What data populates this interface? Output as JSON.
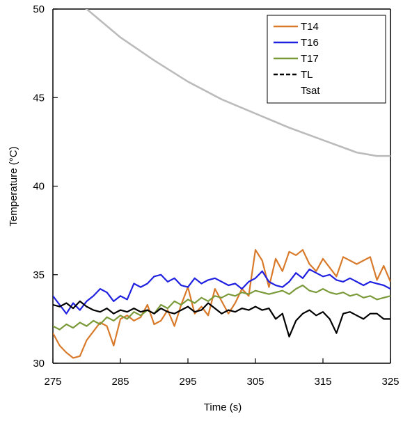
{
  "chart_data": {
    "type": "line",
    "title": "",
    "xlabel": "Time (s)",
    "ylabel": "Temperature (°C)",
    "xlim": [
      275,
      325
    ],
    "ylim": [
      30,
      50
    ],
    "x_ticks": [
      "275",
      "285",
      "295",
      "305",
      "315",
      "325"
    ],
    "y_ticks": [
      "30",
      "35",
      "40",
      "45",
      "50"
    ],
    "grid": false,
    "legend_position": "top-right",
    "series": [
      {
        "name": "T14",
        "color": "#d97a2b",
        "dash": "solid",
        "x": [
          275,
          276,
          277,
          278,
          279,
          280,
          281,
          282,
          283,
          284,
          285,
          286,
          287,
          288,
          289,
          290,
          291,
          292,
          293,
          294,
          295,
          296,
          297,
          298,
          299,
          300,
          301,
          302,
          303,
          304,
          305,
          306,
          307,
          308,
          309,
          310,
          311,
          312,
          313,
          314,
          315,
          316,
          317,
          318,
          319,
          320,
          321,
          322,
          323,
          324,
          325
        ],
        "y": [
          31.7,
          31.0,
          30.6,
          30.3,
          30.4,
          31.3,
          31.8,
          32.3,
          32.1,
          31.0,
          32.5,
          32.7,
          32.4,
          32.6,
          33.3,
          32.2,
          32.4,
          33.0,
          32.1,
          33.3,
          34.3,
          32.8,
          33.2,
          32.7,
          34.2,
          33.5,
          32.8,
          33.4,
          34.2,
          33.8,
          36.4,
          35.8,
          34.3,
          35.9,
          35.2,
          36.3,
          36.1,
          36.4,
          35.6,
          35.2,
          35.9,
          35.4,
          34.9,
          36.0,
          35.8,
          35.6,
          35.8,
          36.0,
          34.7,
          35.5,
          34.6
        ]
      },
      {
        "name": "T16",
        "color": "#2020e0",
        "dash": "solid",
        "x": [
          275,
          276,
          277,
          278,
          279,
          280,
          281,
          282,
          283,
          284,
          285,
          286,
          287,
          288,
          289,
          290,
          291,
          292,
          293,
          294,
          295,
          296,
          297,
          298,
          299,
          300,
          301,
          302,
          303,
          304,
          305,
          306,
          307,
          308,
          309,
          310,
          311,
          312,
          313,
          314,
          315,
          316,
          317,
          318,
          319,
          320,
          321,
          322,
          323,
          324,
          325
        ],
        "y": [
          33.8,
          33.3,
          32.8,
          33.4,
          33.0,
          33.5,
          33.8,
          34.2,
          34.0,
          33.5,
          33.8,
          33.6,
          34.5,
          34.3,
          34.5,
          34.9,
          35.0,
          34.6,
          34.8,
          34.4,
          34.3,
          34.8,
          34.5,
          34.7,
          34.8,
          34.6,
          34.4,
          34.5,
          34.2,
          34.6,
          34.8,
          35.2,
          34.6,
          34.4,
          34.3,
          34.6,
          35.1,
          34.8,
          35.3,
          35.1,
          34.9,
          35.0,
          34.7,
          34.6,
          34.8,
          34.6,
          34.4,
          34.6,
          34.5,
          34.4,
          34.2
        ]
      },
      {
        "name": "T17",
        "color": "#7a9a3a",
        "dash": "solid",
        "x": [
          275,
          276,
          277,
          278,
          279,
          280,
          281,
          282,
          283,
          284,
          285,
          286,
          287,
          288,
          289,
          290,
          291,
          292,
          293,
          294,
          295,
          296,
          297,
          298,
          299,
          300,
          301,
          302,
          303,
          304,
          305,
          306,
          307,
          308,
          309,
          310,
          311,
          312,
          313,
          314,
          315,
          316,
          317,
          318,
          319,
          320,
          321,
          322,
          323,
          324,
          325
        ],
        "y": [
          32.1,
          31.9,
          32.2,
          32.0,
          32.3,
          32.1,
          32.4,
          32.2,
          32.6,
          32.4,
          32.7,
          32.5,
          32.9,
          32.7,
          33.0,
          32.8,
          33.3,
          33.1,
          33.5,
          33.3,
          33.6,
          33.4,
          33.7,
          33.5,
          33.8,
          33.7,
          33.9,
          33.8,
          34.0,
          33.9,
          34.1,
          34.0,
          33.9,
          34.0,
          34.1,
          33.9,
          34.2,
          34.4,
          34.1,
          34.0,
          34.2,
          34.0,
          33.9,
          34.0,
          33.8,
          33.9,
          33.7,
          33.8,
          33.6,
          33.7,
          33.8
        ]
      },
      {
        "name": "TL",
        "color": "#000000",
        "dash": "solid",
        "x": [
          275,
          276,
          277,
          278,
          279,
          280,
          281,
          282,
          283,
          284,
          285,
          286,
          287,
          288,
          289,
          290,
          291,
          292,
          293,
          294,
          295,
          296,
          297,
          298,
          299,
          300,
          301,
          302,
          303,
          304,
          305,
          306,
          307,
          308,
          309,
          310,
          311,
          312,
          313,
          314,
          315,
          316,
          317,
          318,
          319,
          320,
          321,
          322,
          323,
          324,
          325
        ],
        "y": [
          33.3,
          33.2,
          33.4,
          33.1,
          33.5,
          33.2,
          33.0,
          32.9,
          33.1,
          32.8,
          33.0,
          32.9,
          33.1,
          32.9,
          33.0,
          32.8,
          33.1,
          32.9,
          32.8,
          33.0,
          33.2,
          32.9,
          33.0,
          33.4,
          33.1,
          32.8,
          33.0,
          32.9,
          33.1,
          33.0,
          33.2,
          33.0,
          33.1,
          32.5,
          32.8,
          31.5,
          32.4,
          32.8,
          33.0,
          32.7,
          32.9,
          32.5,
          31.7,
          32.8,
          32.9,
          32.7,
          32.5,
          32.8,
          32.8,
          32.5,
          32.5
        ]
      },
      {
        "name": "Tsat",
        "color": "#bbbbbb",
        "dash": "solid",
        "x": [
          275,
          280,
          285,
          290,
          295,
          300,
          305,
          310,
          315,
          320,
          323,
          325
        ],
        "y": [
          51.5,
          50.0,
          48.4,
          47.1,
          45.9,
          44.9,
          44.1,
          43.3,
          42.6,
          41.9,
          41.7,
          41.7
        ]
      }
    ]
  }
}
